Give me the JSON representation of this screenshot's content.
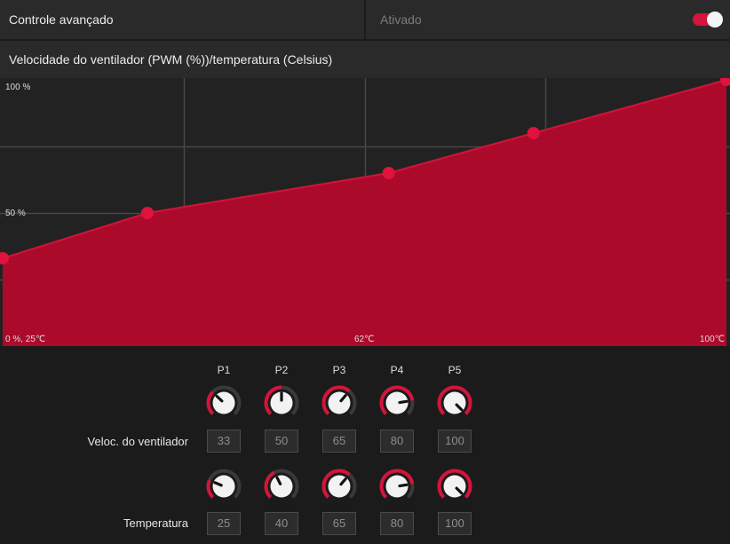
{
  "header": {
    "title": "Controle avançado",
    "status": "Ativado",
    "toggle_on": true
  },
  "chart_title": "Velocidade do ventilador (PWM (%))/temperatura (Celsius)",
  "chart_data": {
    "type": "area",
    "x": [
      25,
      40,
      65,
      80,
      100
    ],
    "y": [
      33,
      50,
      65,
      80,
      100
    ],
    "xlim": [
      25,
      100
    ],
    "ylim": [
      0,
      100
    ],
    "tick_labels": {
      "y_top": "100 %",
      "y_mid": "50 %",
      "origin": "0 %, 25℃",
      "x_mid": "62℃",
      "x_end": "100℃"
    },
    "fill_color": "#ac0a2b",
    "line_color": "#d01438",
    "point_color": "#e0123e",
    "grid": true
  },
  "points": {
    "columns": [
      "P1",
      "P2",
      "P3",
      "P4",
      "P5"
    ],
    "rows": [
      {
        "label": "Veloc. do ventilador",
        "values": [
          "33",
          "50",
          "65",
          "80",
          "100"
        ],
        "knob_levels": [
          0.33,
          0.5,
          0.65,
          0.8,
          1.0
        ]
      },
      {
        "label": "Temperatura",
        "values": [
          "25",
          "40",
          "65",
          "80",
          "100"
        ],
        "knob_levels": [
          0.25,
          0.4,
          0.65,
          0.8,
          1.0
        ]
      }
    ]
  },
  "colors": {
    "accent": "#d4143a",
    "knob_track": "#3a3a3a",
    "knob_face": "#f2f2f2"
  }
}
